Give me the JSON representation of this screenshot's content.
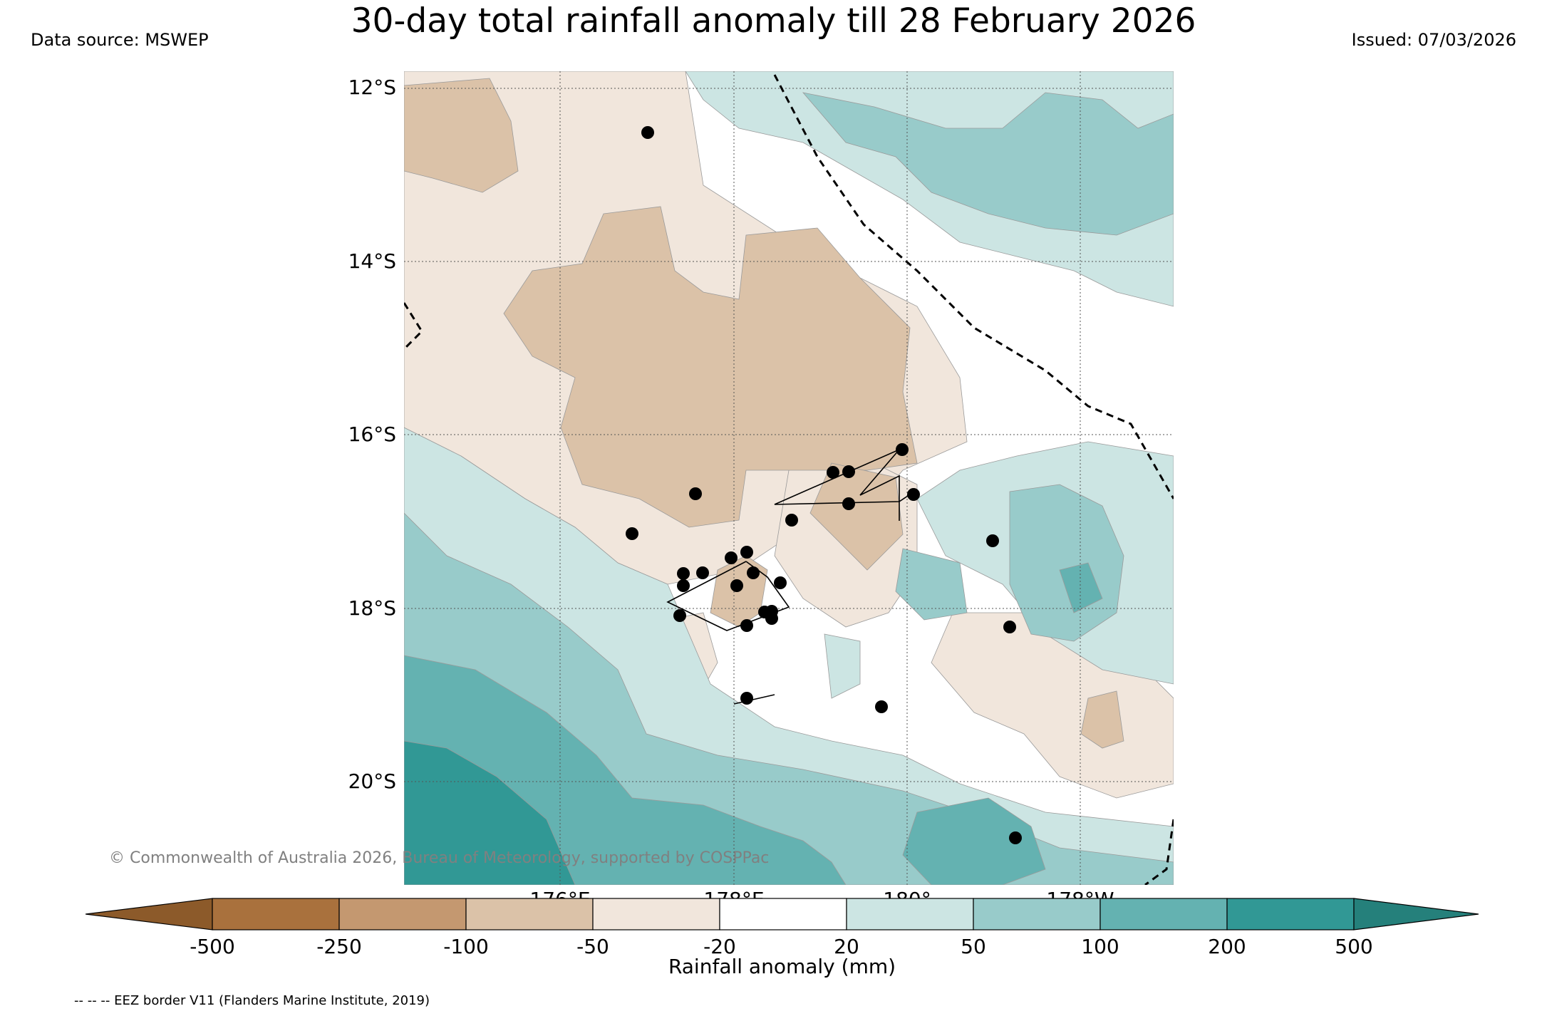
{
  "header": {
    "title": "30-day total rainfall anomaly till 28 February 2026",
    "data_source": "Data source: MSWEP",
    "issued": "Issued: 07/03/2026"
  },
  "map": {
    "lat_labels": [
      "12°S",
      "14°S",
      "16°S",
      "18°S",
      "20°S"
    ],
    "lon_labels": [
      "176°E",
      "178°E",
      "180°",
      "178°W"
    ],
    "copyright": "© Commonwealth of Australia 2026, Bureau of Meteorology, supported by COSPPac",
    "eez_legend": "-- -- -- EEZ border V11 (Flanders Marine Institute, 2019)"
  },
  "colorbar": {
    "title": "Rainfall anomaly (mm)",
    "tick_labels": [
      "-500",
      "-250",
      "-100",
      "-50",
      "-20",
      "20",
      "50",
      "100",
      "200",
      "500"
    ],
    "colors": {
      "extend_low": "#8c5a2a",
      "c1": "#a9713d",
      "c2": "#c49870",
      "c3": "#dbc2a8",
      "c4": "#f1e6dc",
      "c5": "#ffffff",
      "c6": "#cce5e3",
      "c7": "#98cbca",
      "c8": "#64b2b1",
      "c9": "#319895",
      "extend_high": "#25807b"
    }
  },
  "colors": {
    "grid": "#555555",
    "eez_line": "#000000",
    "station_dot": "#000000",
    "copyright_text": "#808080"
  }
}
